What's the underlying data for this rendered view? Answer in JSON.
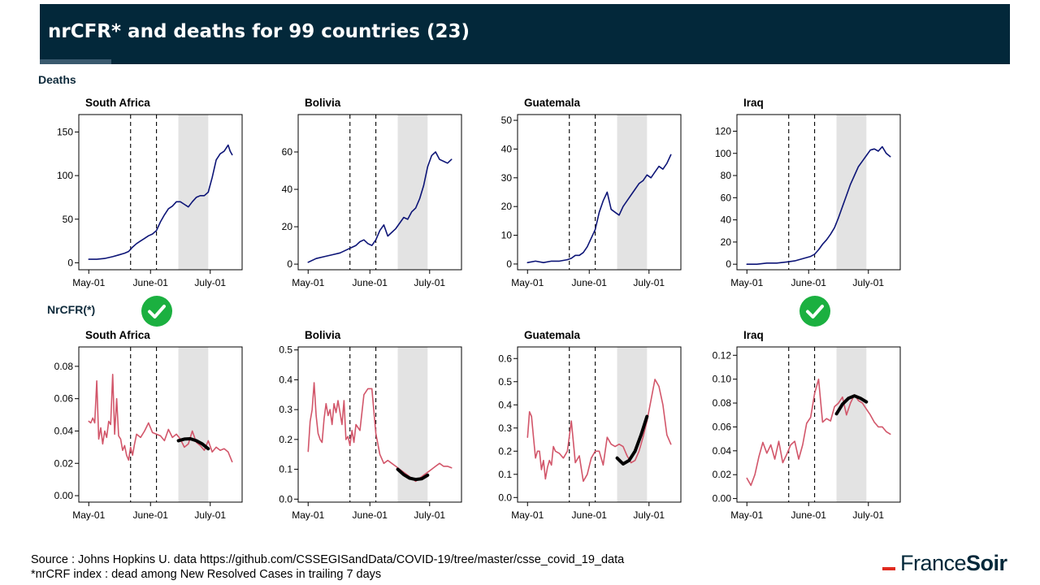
{
  "slide": {
    "title": "nrCFR* and deaths for 99 countries (23)",
    "deaths_label": "Deaths",
    "nrcfr_label": "NrCFR(*)",
    "source_line": "Source : Johns Hopkins U. data https://github.com/CSSEGISandData/COVID-19/tree/master/csse_covid_19_data",
    "note_line": "*nrCRF index : dead among New Resolved  Cases in trailing 7 days",
    "logo": {
      "part1": "France",
      "part2": "Soir"
    },
    "checkmarks": [
      "South Africa",
      "Iraq"
    ]
  },
  "colors": {
    "title_bg": "#03283a",
    "deaths_line": "#0d1577",
    "nrcfr_line": "#d2566a",
    "fit_line": "#000000",
    "shade": "#e3e3e3",
    "check": "#1bb040",
    "logo_dash": "#e02a1e"
  },
  "x_axis": {
    "tick_days": [
      0,
      31,
      61
    ],
    "tick_labels": [
      "May-01",
      "June-01",
      "July-01"
    ],
    "xlim": [
      -5,
      77
    ],
    "dashed_lines_days": [
      21,
      34
    ],
    "shade_days": [
      45,
      60
    ]
  },
  "chart_data": [
    {
      "type": "line",
      "title": "South Africa",
      "row": "deaths",
      "ylim": [
        -8,
        170
      ],
      "yticks": [
        0,
        50,
        100,
        150
      ],
      "series": [
        {
          "x": [
            0,
            4,
            8,
            12,
            15,
            18,
            20,
            22,
            24,
            26,
            28,
            30,
            32,
            34,
            36,
            38,
            40,
            42,
            44,
            46,
            48,
            50,
            52,
            54,
            56,
            58,
            60,
            62,
            64,
            66,
            68,
            70,
            71,
            72
          ],
          "values": [
            4,
            4,
            5,
            7,
            9,
            11,
            13,
            18,
            22,
            25,
            28,
            31,
            33,
            37,
            47,
            55,
            62,
            65,
            70,
            70,
            67,
            64,
            70,
            75,
            77,
            77,
            81,
            98,
            118,
            125,
            128,
            135,
            128,
            124
          ]
        }
      ]
    },
    {
      "type": "line",
      "title": "Bolivia",
      "row": "deaths",
      "ylim": [
        -3,
        80
      ],
      "yticks": [
        0,
        20,
        40,
        60
      ],
      "series": [
        {
          "x": [
            0,
            4,
            8,
            12,
            16,
            20,
            22,
            24,
            26,
            28,
            30,
            32,
            34,
            36,
            38,
            40,
            42,
            44,
            46,
            48,
            50,
            52,
            54,
            56,
            58,
            60,
            62,
            64,
            66,
            68,
            70,
            72
          ],
          "values": [
            1,
            3,
            4,
            5,
            6,
            8,
            9,
            10,
            12,
            13,
            11,
            10,
            13,
            18,
            21,
            15,
            17,
            19,
            22,
            25,
            24,
            28,
            30,
            35,
            42,
            52,
            58,
            60,
            56,
            55,
            54,
            56
          ]
        }
      ]
    },
    {
      "type": "line",
      "title": "Guatemala",
      "row": "deaths",
      "ylim": [
        -2,
        52
      ],
      "yticks": [
        0,
        10,
        20,
        30,
        40,
        50
      ],
      "series": [
        {
          "x": [
            0,
            4,
            8,
            12,
            16,
            20,
            22,
            24,
            26,
            28,
            30,
            32,
            34,
            36,
            38,
            40,
            42,
            44,
            46,
            48,
            50,
            52,
            54,
            56,
            58,
            60,
            62,
            64,
            66,
            68,
            70,
            72
          ],
          "values": [
            0.5,
            1,
            0.5,
            1,
            1,
            1.5,
            2,
            3,
            3,
            4,
            6,
            9,
            12,
            18,
            22,
            25,
            19,
            18,
            17,
            20,
            22,
            24,
            26,
            28,
            29,
            31,
            30,
            32,
            34,
            33,
            35,
            38
          ]
        }
      ]
    },
    {
      "type": "line",
      "title": "Iraq",
      "row": "deaths",
      "ylim": [
        -5,
        135
      ],
      "yticks": [
        0,
        20,
        40,
        60,
        80,
        100,
        120
      ],
      "series": [
        {
          "x": [
            0,
            5,
            10,
            15,
            20,
            24,
            28,
            32,
            34,
            36,
            38,
            40,
            42,
            44,
            46,
            48,
            50,
            52,
            54,
            56,
            58,
            60,
            62,
            64,
            66,
            68,
            70,
            72
          ],
          "values": [
            0,
            0,
            1,
            1,
            2,
            3,
            5,
            7,
            9,
            13,
            18,
            22,
            27,
            33,
            42,
            52,
            62,
            72,
            80,
            88,
            93,
            98,
            103,
            104,
            102,
            106,
            100,
            97
          ]
        }
      ]
    },
    {
      "type": "line",
      "title": "South Africa",
      "row": "nrcfr",
      "ylim": [
        -0.004,
        0.092
      ],
      "yticks": [
        0.0,
        0.02,
        0.04,
        0.06,
        0.08
      ],
      "ytick_labels": [
        "0.00",
        "0.02",
        "0.04",
        "0.06",
        "0.08"
      ],
      "series": [
        {
          "name": "nrCFR",
          "x": [
            0,
            1,
            2,
            3,
            4,
            5,
            6,
            7,
            8,
            9,
            10,
            11,
            12,
            13,
            14,
            15,
            16,
            17,
            18,
            19,
            20,
            21,
            22,
            23,
            24,
            26,
            28,
            30,
            32,
            34,
            36,
            38,
            40,
            42,
            44,
            46,
            48,
            50,
            52,
            54,
            56,
            58,
            60,
            62,
            64,
            66,
            68,
            70,
            72
          ],
          "values": [
            0.046,
            0.045,
            0.048,
            0.045,
            0.071,
            0.035,
            0.042,
            0.032,
            0.04,
            0.036,
            0.046,
            0.044,
            0.075,
            0.038,
            0.06,
            0.037,
            0.035,
            0.028,
            0.031,
            0.025,
            0.022,
            0.03,
            0.025,
            0.032,
            0.038,
            0.036,
            0.04,
            0.045,
            0.039,
            0.038,
            0.037,
            0.034,
            0.041,
            0.036,
            0.038,
            0.035,
            0.03,
            0.032,
            0.04,
            0.033,
            0.031,
            0.028,
            0.034,
            0.027,
            0.03,
            0.028,
            0.029,
            0.027,
            0.021
          ]
        },
        {
          "name": "fit",
          "x": [
            45,
            48,
            51,
            54,
            57,
            60
          ],
          "values": [
            0.034,
            0.035,
            0.0352,
            0.034,
            0.032,
            0.029
          ]
        }
      ]
    },
    {
      "type": "line",
      "title": "Bolivia",
      "row": "nrcfr",
      "ylim": [
        -0.01,
        0.51
      ],
      "yticks": [
        0.0,
        0.1,
        0.2,
        0.3,
        0.4,
        0.5
      ],
      "ytick_labels": [
        "0.0",
        "0.1",
        "0.2",
        "0.3",
        "0.4",
        "0.5"
      ],
      "series": [
        {
          "name": "nrCFR",
          "x": [
            0,
            1,
            2,
            3,
            4,
            5,
            6,
            7,
            8,
            9,
            10,
            11,
            12,
            13,
            14,
            15,
            16,
            17,
            18,
            19,
            20,
            21,
            22,
            23,
            24,
            26,
            28,
            30,
            32,
            34,
            36,
            38,
            40,
            42,
            44,
            46,
            48,
            50,
            52,
            54,
            56,
            58,
            60,
            62,
            64,
            66,
            68,
            70,
            72
          ],
          "values": [
            0.16,
            0.26,
            0.3,
            0.39,
            0.28,
            0.22,
            0.2,
            0.19,
            0.27,
            0.32,
            0.28,
            0.3,
            0.25,
            0.32,
            0.29,
            0.33,
            0.29,
            0.25,
            0.33,
            0.2,
            0.21,
            0.18,
            0.23,
            0.19,
            0.25,
            0.23,
            0.35,
            0.37,
            0.37,
            0.22,
            0.15,
            0.12,
            0.13,
            0.12,
            0.11,
            0.1,
            0.09,
            0.08,
            0.07,
            0.06,
            0.07,
            0.08,
            0.09,
            0.1,
            0.11,
            0.12,
            0.11,
            0.11,
            0.105
          ]
        },
        {
          "name": "fit",
          "x": [
            45,
            48,
            51,
            54,
            57,
            60
          ],
          "values": [
            0.1,
            0.082,
            0.07,
            0.066,
            0.068,
            0.08
          ]
        }
      ]
    },
    {
      "type": "line",
      "title": "Guatemala",
      "row": "nrcfr",
      "ylim": [
        -0.02,
        0.65
      ],
      "yticks": [
        0.0,
        0.1,
        0.2,
        0.3,
        0.4,
        0.5,
        0.6
      ],
      "ytick_labels": [
        "0.0",
        "0.1",
        "0.2",
        "0.3",
        "0.4",
        "0.5",
        "0.6"
      ],
      "series": [
        {
          "name": "nrCFR",
          "x": [
            0,
            1,
            2,
            3,
            4,
            5,
            6,
            7,
            8,
            9,
            10,
            11,
            12,
            13,
            14,
            16,
            18,
            20,
            22,
            24,
            26,
            28,
            30,
            32,
            34,
            36,
            38,
            40,
            42,
            44,
            46,
            48,
            50,
            52,
            54,
            56,
            58,
            60,
            62,
            64,
            66,
            68,
            70,
            72
          ],
          "values": [
            0.26,
            0.37,
            0.35,
            0.26,
            0.17,
            0.2,
            0.2,
            0.12,
            0.16,
            0.08,
            0.13,
            0.16,
            0.14,
            0.22,
            0.2,
            0.19,
            0.17,
            0.2,
            0.33,
            0.15,
            0.18,
            0.07,
            0.1,
            0.17,
            0.2,
            0.2,
            0.14,
            0.26,
            0.23,
            0.22,
            0.23,
            0.22,
            0.18,
            0.15,
            0.16,
            0.2,
            0.26,
            0.33,
            0.42,
            0.51,
            0.48,
            0.4,
            0.27,
            0.23
          ]
        },
        {
          "name": "fit",
          "x": [
            45,
            48,
            51,
            54,
            57,
            60
          ],
          "values": [
            0.17,
            0.145,
            0.16,
            0.2,
            0.27,
            0.35
          ]
        }
      ]
    },
    {
      "type": "line",
      "title": "Iraq",
      "row": "nrcfr",
      "ylim": [
        -0.003,
        0.127
      ],
      "yticks": [
        0.0,
        0.02,
        0.04,
        0.06,
        0.08,
        0.1,
        0.12
      ],
      "ytick_labels": [
        "0.00",
        "0.02",
        "0.04",
        "0.06",
        "0.08",
        "0.10",
        "0.12"
      ],
      "series": [
        {
          "name": "nrCFR",
          "x": [
            0,
            2,
            4,
            6,
            8,
            10,
            12,
            14,
            16,
            18,
            20,
            22,
            24,
            26,
            28,
            30,
            32,
            34,
            36,
            38,
            40,
            42,
            44,
            46,
            48,
            50,
            52,
            54,
            56,
            58,
            60,
            62,
            64,
            66,
            68,
            70,
            72
          ],
          "values": [
            0.017,
            0.011,
            0.02,
            0.035,
            0.047,
            0.038,
            0.045,
            0.033,
            0.048,
            0.03,
            0.037,
            0.045,
            0.048,
            0.033,
            0.045,
            0.063,
            0.068,
            0.088,
            0.1,
            0.064,
            0.067,
            0.065,
            0.077,
            0.08,
            0.085,
            0.07,
            0.08,
            0.087,
            0.082,
            0.08,
            0.075,
            0.07,
            0.064,
            0.06,
            0.06,
            0.056,
            0.054
          ]
        },
        {
          "name": "fit",
          "x": [
            45,
            48,
            51,
            54,
            57,
            60
          ],
          "values": [
            0.071,
            0.079,
            0.084,
            0.086,
            0.084,
            0.081
          ]
        }
      ]
    }
  ]
}
